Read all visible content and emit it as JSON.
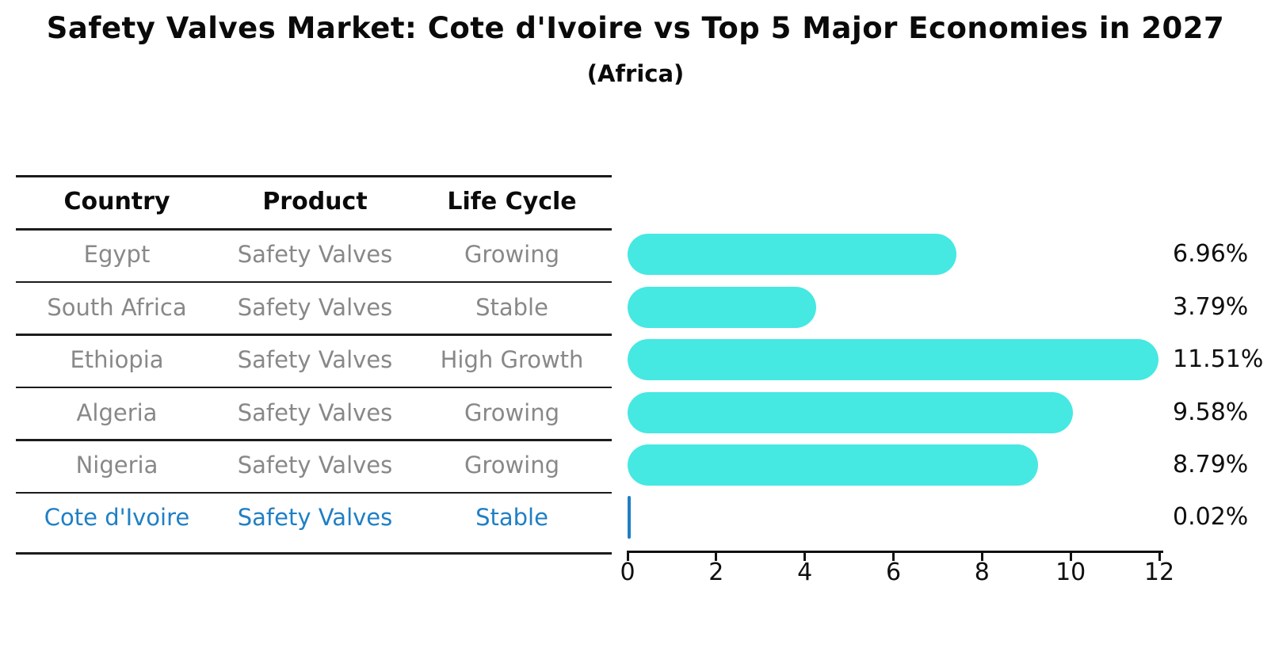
{
  "title": "Safety Valves Market: Cote d'Ivoire vs Top 5 Major Economies in 2027",
  "subtitle": "(Africa)",
  "colors": {
    "bar": "#46e8e2",
    "highlight": "#1f7fc4",
    "row_text": "#888888",
    "header_text": "#0a0a0a",
    "line": "#1c1c1c"
  },
  "table": {
    "headers": [
      "Country",
      "Product",
      "Life Cycle"
    ],
    "rows": [
      {
        "country": "Egypt",
        "product": "Safety Valves",
        "life_cycle": "Growing",
        "highlight": false
      },
      {
        "country": "South Africa",
        "product": "Safety Valves",
        "life_cycle": "Stable",
        "highlight": false
      },
      {
        "country": "Ethiopia",
        "product": "Safety Valves",
        "life_cycle": "High Growth",
        "highlight": false
      },
      {
        "country": "Algeria",
        "product": "Safety Valves",
        "life_cycle": "Growing",
        "highlight": false
      },
      {
        "country": "Nigeria",
        "product": "Safety Valves",
        "life_cycle": "Growing",
        "highlight": false
      },
      {
        "country": "Cote d'Ivoire",
        "product": "Safety Valves",
        "life_cycle": "Stable",
        "highlight": true
      }
    ]
  },
  "chart_data": {
    "type": "bar",
    "orientation": "horizontal",
    "title": "Safety Valves Market: Cote d'Ivoire vs Top 5 Major Economies in 2027 (Africa)",
    "categories": [
      "Egypt",
      "South Africa",
      "Ethiopia",
      "Algeria",
      "Nigeria",
      "Cote d'Ivoire"
    ],
    "values": [
      6.96,
      3.79,
      11.51,
      9.58,
      8.79,
      0.02
    ],
    "value_labels": [
      "6.96%",
      "3.79%",
      "11.51%",
      "9.58%",
      "8.79%",
      "0.02%"
    ],
    "xlabel": "",
    "ylabel": "",
    "xlim": [
      0,
      12
    ],
    "xticks": [
      0,
      2,
      4,
      6,
      8,
      10,
      12
    ],
    "xtick_labels": [
      "0",
      "2",
      "4",
      "6",
      "8",
      "10",
      "12"
    ],
    "grid": false,
    "legend": false,
    "bar_color": "#46e8e2",
    "highlight_color": "#1f7fc4",
    "highlight_index": 5
  }
}
